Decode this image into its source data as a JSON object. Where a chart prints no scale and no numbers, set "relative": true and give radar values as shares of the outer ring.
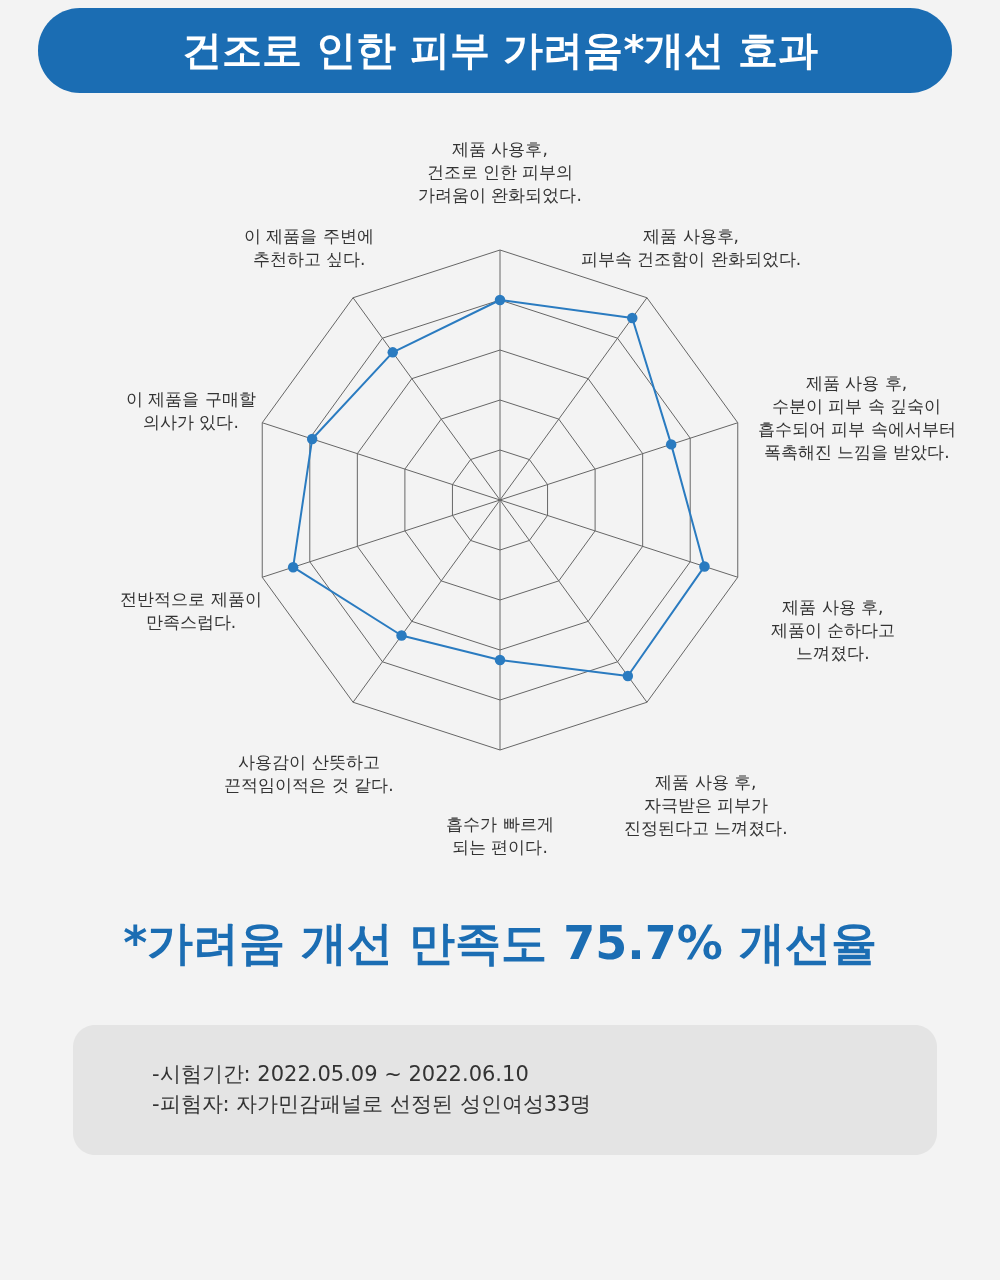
{
  "chart_data": {
    "type": "radar",
    "title": "건조로 인한 피부 가려움*개선 효과",
    "relative": true,
    "grid": true,
    "marker": "circle",
    "categories": [
      "제품 사용후,\n건조로 인한 피부의\n가려움이 완화되었다.",
      "제품 사용후,\n피부속 건조함이 완화되었다.",
      "제품 사용 후,\n수분이 피부 속 깊숙이\n흡수되어 피부 속에서부터\n폭촉해진 느낌을 받았다.",
      "제품 사용 후,\n제품이 순하다고\n느껴졌다.",
      "제품 사용 후,\n자극받은 피부가\n진정된다고 느껴졌다.",
      "흡수가 빠르게\n되는 편이다.",
      "사용감이 산뜻하고\n끈적임이적은 것 같다.",
      "전반적으로 제품이\n만족스럽다.",
      "이 제품을 구매할\n의사가 있다.",
      "이 제품을 주변에\n추천하고 싶다."
    ],
    "series": [
      {
        "color": "#2a7bc0",
        "values": [
          0.8,
          0.9,
          0.72,
          0.86,
          0.87,
          0.64,
          0.67,
          0.87,
          0.79,
          0.73
        ]
      }
    ],
    "annotations": [
      "*가려움 개선 만족도 75.7% 개선율",
      "-시험기간: 2022.05.09 ~ 2022.06.10",
      "-피험자: 자가민감패널로 선정된 성인여성33명"
    ]
  }
}
